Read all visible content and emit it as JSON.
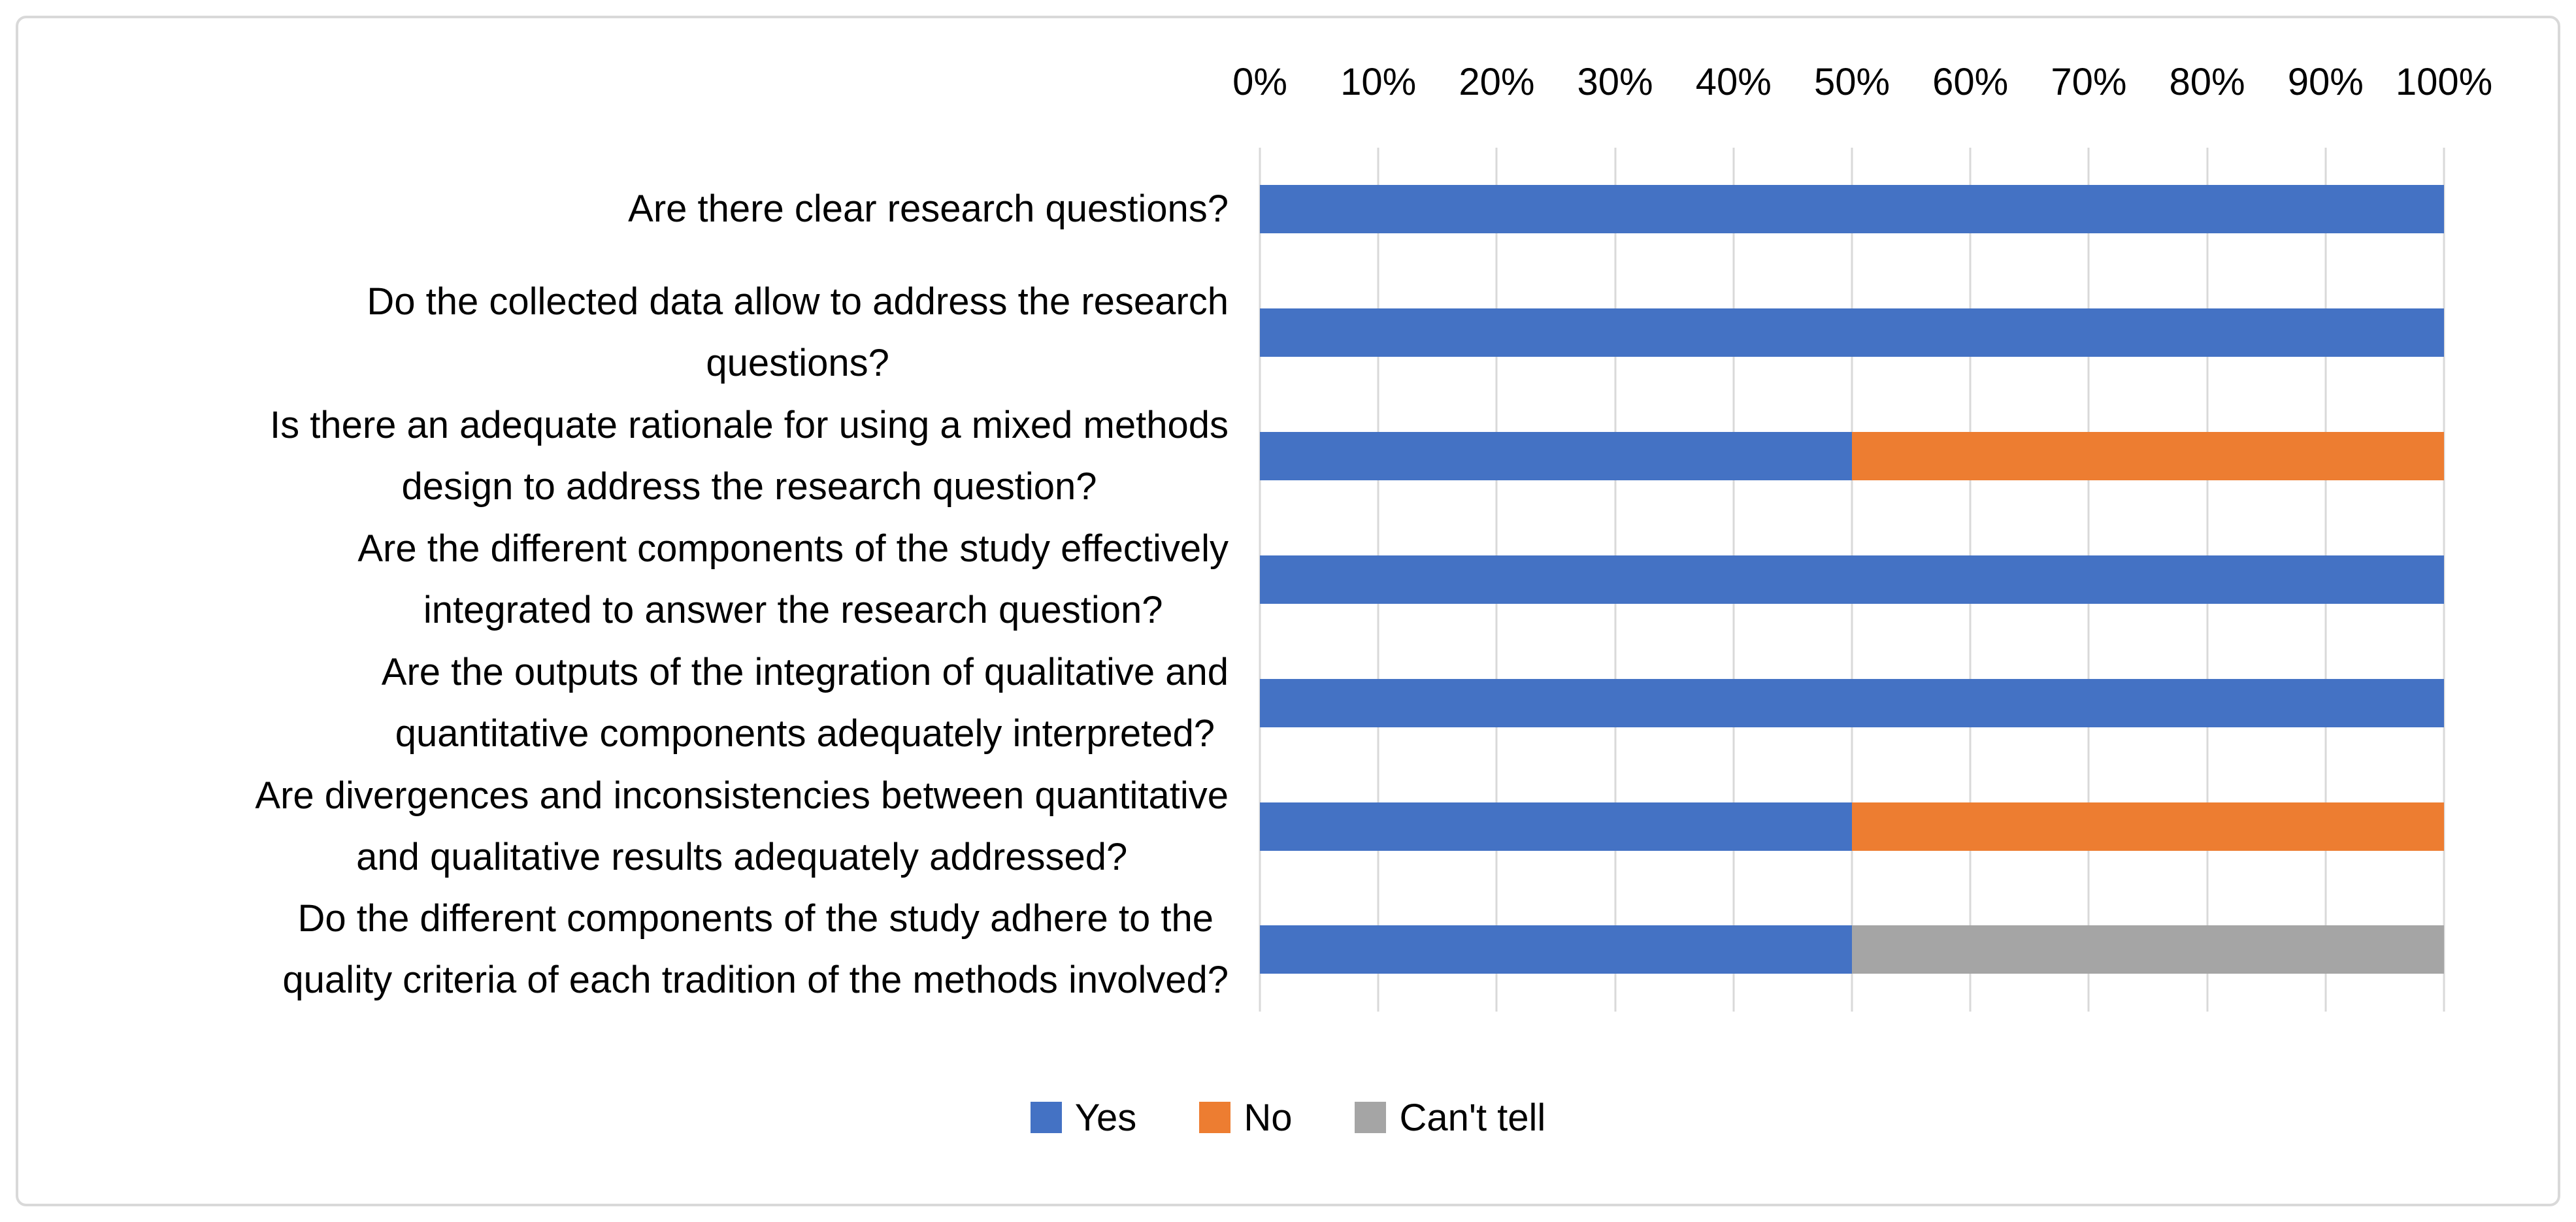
{
  "page": {
    "background": "#FFFFFF",
    "frame_border_color": "#D9D9D9"
  },
  "chart_data": {
    "type": "bar",
    "orientation": "horizontal",
    "stacked": true,
    "unit": "percent",
    "title": "",
    "categories": [
      "Are there clear research questions?",
      "Do the collected data allow to address the research\nquestions?",
      "Is there an adequate rationale for using a mixed methods\ndesign to address the research question?",
      "Are the different components of the study effectively\nintegrated to answer the research question?",
      "Are the outputs of the integration of qualitative and\nquantitative components adequately interpreted?",
      "Are divergences and inconsistencies between quantitative\nand qualitative results adequately addressed?",
      "Do the different components of the study adhere to the\nquality criteria of each tradition of the methods involved?"
    ],
    "series": [
      {
        "name": "Yes",
        "color": "#4472C4",
        "values": [
          100,
          100,
          50,
          100,
          100,
          50,
          50
        ]
      },
      {
        "name": "No",
        "color": "#ED7D31",
        "values": [
          0,
          0,
          50,
          0,
          0,
          50,
          0
        ]
      },
      {
        "name": "Can't tell",
        "color": "#A5A5A5",
        "values": [
          0,
          0,
          0,
          0,
          0,
          0,
          50
        ]
      }
    ],
    "x_axis": {
      "position": "top",
      "range": [
        0,
        100
      ],
      "tick_labels": [
        "0%",
        "10%",
        "20%",
        "30%",
        "40%",
        "50%",
        "60%",
        "70%",
        "80%",
        "90%",
        "100%"
      ]
    },
    "gridlines": {
      "show": true,
      "vertical": true,
      "color": "#D9D9D9"
    },
    "legend": {
      "position": "bottom"
    }
  }
}
